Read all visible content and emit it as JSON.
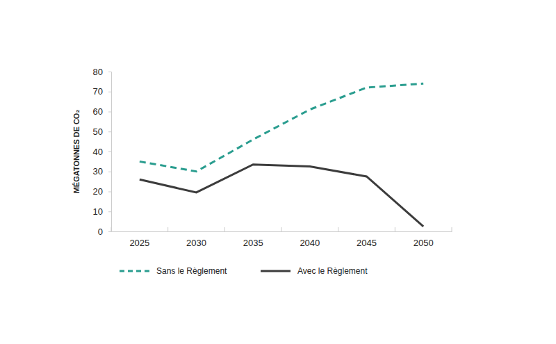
{
  "chart_data": {
    "type": "line",
    "y_label": "MÉGATONNES DE CO₂",
    "categories": [
      "2025",
      "2030",
      "2035",
      "2040",
      "2045",
      "2050"
    ],
    "series": [
      {
        "name": "Sans le Règlement",
        "color": "#2a9d8f",
        "line_style": "dashed",
        "values": [
          35,
          30,
          46,
          61,
          72,
          74
        ]
      },
      {
        "name": "Avec le Règlement",
        "color": "#3c3c3c",
        "line_style": "solid",
        "values": [
          26,
          19.5,
          33.5,
          32.5,
          27.5,
          2.5
        ]
      }
    ],
    "ylim": [
      0,
      80
    ],
    "yticks": [
      0,
      10,
      20,
      30,
      40,
      50,
      60,
      70,
      80
    ],
    "grid": false,
    "legend": "bottom"
  }
}
